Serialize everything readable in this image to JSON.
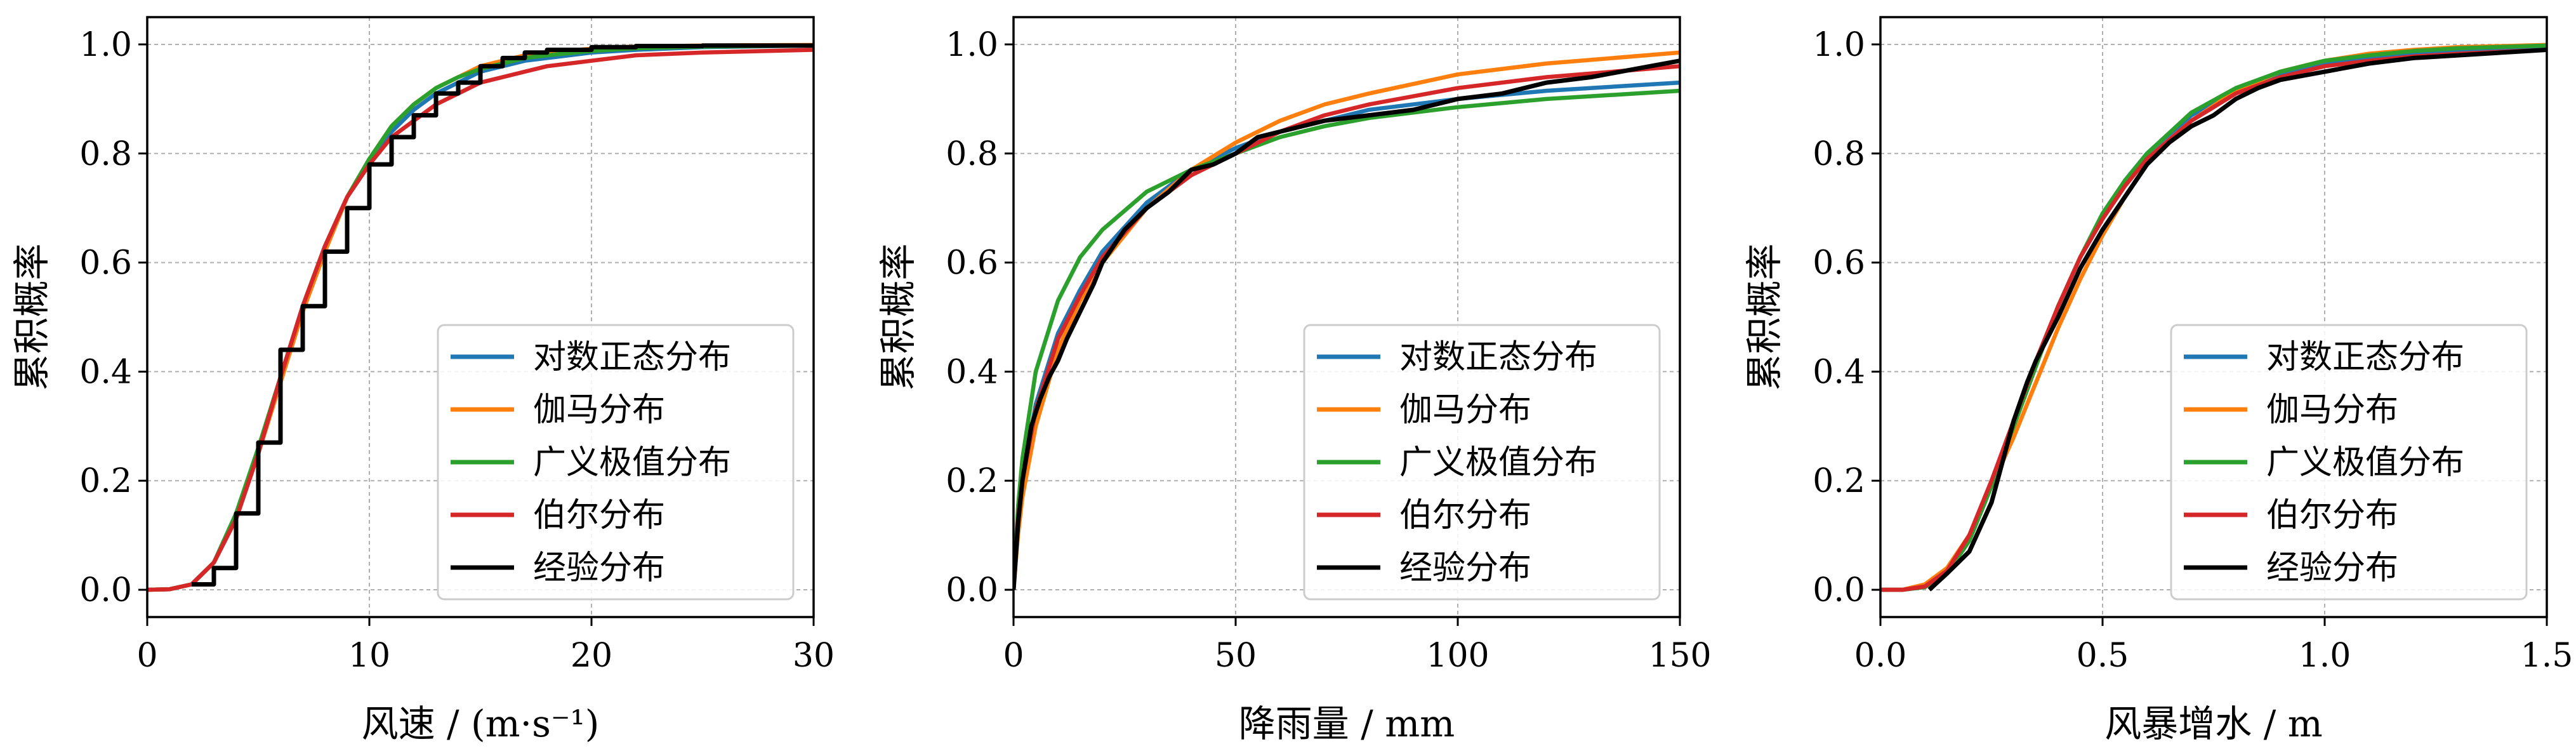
{
  "chart_data": [
    {
      "type": "line",
      "xlabel": "风速 / (m·s⁻¹)",
      "ylabel": "累积概率",
      "xlim": [
        0,
        30
      ],
      "ylim": [
        -0.05,
        1.05
      ],
      "xticks": [
        0,
        10,
        20,
        30
      ],
      "xtick_labels": [
        "0",
        "10",
        "20",
        "30"
      ],
      "yticks": [
        0,
        0.2,
        0.4,
        0.6,
        0.8,
        1.0
      ],
      "ytick_labels": [
        "0.0",
        "0.2",
        "0.4",
        "0.6",
        "0.8",
        "1.0"
      ],
      "grid": true,
      "legend_position": "lower-right",
      "series": [
        {
          "name": "对数正态分布",
          "color": "#1f77b4",
          "x": [
            0,
            1,
            2,
            3,
            4,
            5,
            6,
            7,
            8,
            9,
            10,
            11,
            12,
            13,
            14,
            15,
            16,
            17,
            18,
            20,
            22,
            25,
            30
          ],
          "y": [
            0,
            0.001,
            0.01,
            0.05,
            0.13,
            0.25,
            0.39,
            0.52,
            0.63,
            0.72,
            0.79,
            0.84,
            0.88,
            0.91,
            0.93,
            0.95,
            0.96,
            0.97,
            0.975,
            0.985,
            0.99,
            0.995,
            0.998
          ]
        },
        {
          "name": "伽马分布",
          "color": "#ff7f0e",
          "x": [
            0,
            1,
            2,
            3,
            4,
            5,
            6,
            7,
            8,
            9,
            10,
            11,
            12,
            13,
            14,
            15,
            16,
            17,
            18,
            20,
            22,
            25,
            30
          ],
          "y": [
            0,
            0.001,
            0.01,
            0.05,
            0.13,
            0.25,
            0.38,
            0.51,
            0.62,
            0.72,
            0.79,
            0.85,
            0.89,
            0.92,
            0.94,
            0.96,
            0.97,
            0.98,
            0.985,
            0.992,
            0.996,
            0.998,
            0.999
          ]
        },
        {
          "name": "广义极值分布",
          "color": "#2ca02c",
          "x": [
            0,
            1,
            2,
            3,
            4,
            5,
            6,
            7,
            8,
            9,
            10,
            11,
            12,
            13,
            14,
            15,
            16,
            17,
            18,
            20,
            22,
            25,
            30
          ],
          "y": [
            0,
            0.001,
            0.01,
            0.05,
            0.14,
            0.26,
            0.39,
            0.52,
            0.63,
            0.72,
            0.79,
            0.85,
            0.89,
            0.92,
            0.94,
            0.955,
            0.965,
            0.975,
            0.98,
            0.988,
            0.993,
            0.996,
            0.998
          ]
        },
        {
          "name": "伯尔分布",
          "color": "#d62728",
          "x": [
            0,
            1,
            2,
            3,
            4,
            5,
            6,
            7,
            8,
            9,
            10,
            11,
            12,
            13,
            14,
            15,
            16,
            17,
            18,
            20,
            22,
            25,
            30
          ],
          "y": [
            0,
            0.001,
            0.01,
            0.05,
            0.13,
            0.25,
            0.39,
            0.52,
            0.63,
            0.72,
            0.78,
            0.83,
            0.86,
            0.89,
            0.91,
            0.93,
            0.94,
            0.95,
            0.96,
            0.97,
            0.98,
            0.985,
            0.99
          ]
        },
        {
          "name": "经验分布",
          "color": "#000000",
          "step": true,
          "x": [
            2,
            3,
            4,
            5,
            6,
            7,
            8,
            9,
            10,
            11,
            12,
            13,
            14,
            15,
            16,
            17,
            18,
            20,
            22,
            25,
            30
          ],
          "y": [
            0.01,
            0.04,
            0.14,
            0.27,
            0.44,
            0.52,
            0.62,
            0.7,
            0.78,
            0.83,
            0.87,
            0.91,
            0.93,
            0.96,
            0.975,
            0.985,
            0.99,
            0.995,
            0.997,
            0.998,
            0.999
          ]
        }
      ]
    },
    {
      "type": "line",
      "xlabel": "降雨量 / mm",
      "ylabel": "累积概率",
      "xlim": [
        0,
        150
      ],
      "ylim": [
        -0.05,
        1.05
      ],
      "xticks": [
        0,
        50,
        100,
        150
      ],
      "xtick_labels": [
        "0",
        "50",
        "100",
        "150"
      ],
      "yticks": [
        0,
        0.2,
        0.4,
        0.6,
        0.8,
        1.0
      ],
      "ytick_labels": [
        "0.0",
        "0.2",
        "0.4",
        "0.6",
        "0.8",
        "1.0"
      ],
      "grid": true,
      "legend_position": "lower-right",
      "series": [
        {
          "name": "对数正态分布",
          "color": "#1f77b4",
          "x": [
            0,
            1,
            2,
            5,
            10,
            15,
            20,
            30,
            40,
            50,
            60,
            70,
            80,
            100,
            120,
            150
          ],
          "y": [
            0,
            0.12,
            0.2,
            0.34,
            0.47,
            0.55,
            0.62,
            0.71,
            0.77,
            0.81,
            0.84,
            0.86,
            0.88,
            0.9,
            0.915,
            0.93
          ]
        },
        {
          "name": "伽马分布",
          "color": "#ff7f0e",
          "x": [
            0,
            1,
            2,
            5,
            10,
            15,
            20,
            30,
            40,
            50,
            60,
            70,
            80,
            100,
            120,
            150
          ],
          "y": [
            0,
            0.1,
            0.17,
            0.3,
            0.44,
            0.53,
            0.6,
            0.7,
            0.77,
            0.82,
            0.86,
            0.89,
            0.91,
            0.945,
            0.965,
            0.985
          ]
        },
        {
          "name": "广义极值分布",
          "color": "#2ca02c",
          "x": [
            0,
            1,
            2,
            5,
            10,
            15,
            20,
            30,
            40,
            50,
            60,
            70,
            80,
            100,
            120,
            150
          ],
          "y": [
            0,
            0.15,
            0.24,
            0.4,
            0.53,
            0.61,
            0.66,
            0.73,
            0.77,
            0.8,
            0.83,
            0.85,
            0.865,
            0.885,
            0.9,
            0.915
          ]
        },
        {
          "name": "伯尔分布",
          "color": "#d62728",
          "x": [
            0,
            1,
            2,
            5,
            10,
            15,
            20,
            30,
            40,
            50,
            60,
            70,
            80,
            100,
            120,
            150
          ],
          "y": [
            0,
            0.13,
            0.2,
            0.33,
            0.46,
            0.54,
            0.61,
            0.7,
            0.76,
            0.8,
            0.84,
            0.87,
            0.89,
            0.92,
            0.94,
            0.96
          ]
        },
        {
          "name": "经验分布",
          "color": "#000000",
          "x": [
            0,
            1,
            2,
            4,
            6,
            8,
            10,
            12,
            15,
            18,
            20,
            25,
            30,
            35,
            40,
            45,
            50,
            55,
            60,
            70,
            80,
            90,
            100,
            110,
            120,
            130,
            140,
            150
          ],
          "y": [
            0,
            0.12,
            0.2,
            0.3,
            0.35,
            0.39,
            0.42,
            0.46,
            0.51,
            0.56,
            0.6,
            0.66,
            0.7,
            0.73,
            0.77,
            0.78,
            0.8,
            0.83,
            0.84,
            0.86,
            0.87,
            0.88,
            0.9,
            0.91,
            0.93,
            0.94,
            0.955,
            0.97
          ]
        }
      ]
    },
    {
      "type": "line",
      "xlabel": "风暴增水 / m",
      "ylabel": "累积概率",
      "xlim": [
        0,
        1.5
      ],
      "ylim": [
        -0.05,
        1.05
      ],
      "xticks": [
        0,
        0.5,
        1.0,
        1.5
      ],
      "xtick_labels": [
        "0.0",
        "0.5",
        "1.0",
        "1.5"
      ],
      "yticks": [
        0,
        0.2,
        0.4,
        0.6,
        0.8,
        1.0
      ],
      "ytick_labels": [
        "0.0",
        "0.2",
        "0.4",
        "0.6",
        "0.8",
        "1.0"
      ],
      "grid": true,
      "legend_position": "lower-right",
      "series": [
        {
          "name": "对数正态分布",
          "color": "#1f77b4",
          "x": [
            0,
            0.05,
            0.1,
            0.15,
            0.2,
            0.25,
            0.3,
            0.35,
            0.4,
            0.45,
            0.5,
            0.55,
            0.6,
            0.7,
            0.8,
            0.9,
            1.0,
            1.1,
            1.2,
            1.3,
            1.5
          ],
          "y": [
            0,
            0,
            0.005,
            0.03,
            0.09,
            0.19,
            0.3,
            0.41,
            0.52,
            0.61,
            0.68,
            0.75,
            0.8,
            0.87,
            0.915,
            0.945,
            0.965,
            0.975,
            0.983,
            0.988,
            0.995
          ]
        },
        {
          "name": "伽马分布",
          "color": "#ff7f0e",
          "x": [
            0,
            0.05,
            0.1,
            0.15,
            0.2,
            0.25,
            0.3,
            0.35,
            0.4,
            0.45,
            0.5,
            0.55,
            0.6,
            0.7,
            0.8,
            0.9,
            1.0,
            1.1,
            1.2,
            1.3,
            1.5
          ],
          "y": [
            0,
            0,
            0.01,
            0.04,
            0.1,
            0.19,
            0.28,
            0.38,
            0.48,
            0.57,
            0.65,
            0.72,
            0.78,
            0.86,
            0.915,
            0.95,
            0.97,
            0.983,
            0.99,
            0.995,
            0.999
          ]
        },
        {
          "name": "广义极值分布",
          "color": "#2ca02c",
          "x": [
            0,
            0.05,
            0.1,
            0.15,
            0.2,
            0.25,
            0.3,
            0.35,
            0.4,
            0.45,
            0.5,
            0.55,
            0.6,
            0.7,
            0.8,
            0.9,
            1.0,
            1.1,
            1.2,
            1.3,
            1.5
          ],
          "y": [
            0,
            0,
            0.005,
            0.03,
            0.09,
            0.19,
            0.3,
            0.41,
            0.52,
            0.61,
            0.69,
            0.75,
            0.8,
            0.875,
            0.92,
            0.95,
            0.97,
            0.98,
            0.988,
            0.993,
            0.998
          ]
        },
        {
          "name": "伯尔分布",
          "color": "#d62728",
          "x": [
            0,
            0.05,
            0.1,
            0.15,
            0.2,
            0.25,
            0.3,
            0.35,
            0.4,
            0.45,
            0.5,
            0.55,
            0.6,
            0.7,
            0.8,
            0.9,
            1.0,
            1.1,
            1.2,
            1.3,
            1.5
          ],
          "y": [
            0,
            0,
            0.006,
            0.035,
            0.1,
            0.2,
            0.31,
            0.42,
            0.52,
            0.61,
            0.68,
            0.74,
            0.79,
            0.86,
            0.91,
            0.94,
            0.96,
            0.97,
            0.978,
            0.983,
            0.99
          ]
        },
        {
          "name": "经验分布",
          "color": "#000000",
          "x": [
            0.11,
            0.15,
            0.2,
            0.25,
            0.27,
            0.3,
            0.33,
            0.35,
            0.4,
            0.45,
            0.5,
            0.55,
            0.6,
            0.65,
            0.7,
            0.75,
            0.8,
            0.85,
            0.9,
            1.0,
            1.1,
            1.2,
            1.3,
            1.4,
            1.5
          ],
          "y": [
            0.0,
            0.03,
            0.07,
            0.16,
            0.22,
            0.31,
            0.38,
            0.42,
            0.5,
            0.59,
            0.66,
            0.72,
            0.78,
            0.82,
            0.85,
            0.87,
            0.9,
            0.92,
            0.935,
            0.95,
            0.965,
            0.975,
            0.98,
            0.985,
            0.99
          ]
        }
      ]
    }
  ]
}
